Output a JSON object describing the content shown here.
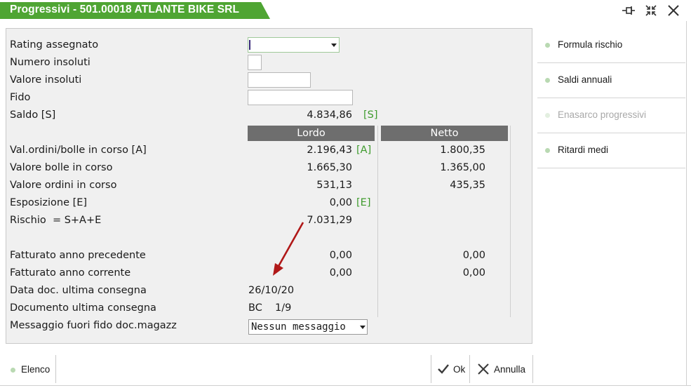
{
  "window": {
    "title": "Progressivi - 501.00018 ATLANTE BIKE SRL"
  },
  "form": {
    "rating": {
      "label": "Rating assegnato",
      "value": ""
    },
    "numero_insoluti": {
      "label": "Numero insoluti",
      "value": ""
    },
    "valore_insoluti": {
      "label": "Valore insoluti",
      "value": ""
    },
    "fido": {
      "label": "Fido",
      "value": ""
    },
    "saldo": {
      "label": "Saldo [S]",
      "value": "4.834,86",
      "tag": "[S]"
    },
    "columns": {
      "lordo": "Lordo",
      "netto": "Netto"
    },
    "val_ordini_bolle": {
      "label": "Val.ordini/bolle in corso [A]",
      "lordo": "2.196,43",
      "tag": "[A]",
      "netto": "1.800,35"
    },
    "valore_bolle": {
      "label": "Valore bolle in corso",
      "lordo": "1.665,30",
      "netto": "1.365,00"
    },
    "valore_ordini": {
      "label": "Valore ordini in corso",
      "lordo": "531,13",
      "netto": "435,35"
    },
    "esposizione": {
      "label": "Esposizione [E]",
      "lordo": "0,00",
      "tag": "[E]"
    },
    "rischio": {
      "label": "Rischio  = S+A+E",
      "lordo": "7.031,29"
    },
    "fatturato_prec": {
      "label": "Fatturato anno precedente",
      "lordo": "0,00",
      "netto": "0,00"
    },
    "fatturato_corr": {
      "label": "Fatturato anno corrente",
      "lordo": "0,00",
      "netto": "0,00"
    },
    "data_doc": {
      "label": "Data doc. ultima consegna",
      "value": "26/10/20"
    },
    "documento": {
      "label": "Documento ultima consegna",
      "type": "BC",
      "number": "1/9"
    },
    "messaggio": {
      "label": "Messaggio fuori fido doc.magazz",
      "value": "Nessun messaggio"
    }
  },
  "side_menu": {
    "items": [
      {
        "label": "Formula rischio",
        "enabled": true
      },
      {
        "label": "Saldi annuali",
        "enabled": true
      },
      {
        "label": "Enasarco progressivi",
        "enabled": false
      },
      {
        "label": "Ritardi medi",
        "enabled": true
      }
    ]
  },
  "footer": {
    "elenco": "Elenco",
    "ok": "Ok",
    "annulla": "Annulla"
  },
  "colors": {
    "accent": "#4fa533",
    "tag_green": "#3f9b2d",
    "column_header": "#6e6e6e",
    "annotation_arrow": "#b01818"
  }
}
